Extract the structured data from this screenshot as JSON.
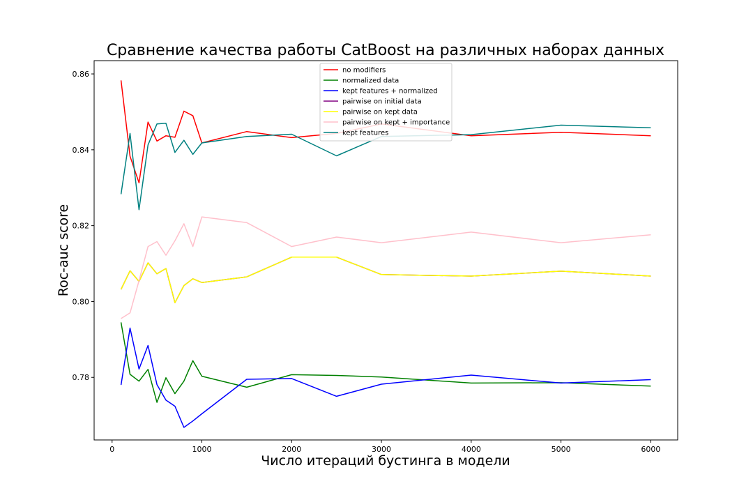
{
  "chart_data": {
    "type": "line",
    "title": "Сравнение качества работы CatBoost на различных наборах данных",
    "xlabel": "Число итераций бустинга в модели",
    "ylabel": "Roc-auc score",
    "xlim": [
      -200,
      6300
    ],
    "ylim": [
      0.7635,
      0.8635
    ],
    "xticks": [
      0,
      1000,
      2000,
      3000,
      4000,
      5000,
      6000
    ],
    "yticks": [
      0.78,
      0.8,
      0.82,
      0.84,
      0.86
    ],
    "xtick_labels": [
      "0",
      "1000",
      "2000",
      "3000",
      "4000",
      "5000",
      "6000"
    ],
    "ytick_labels": [
      "0.78",
      "0.80",
      "0.82",
      "0.84",
      "0.86"
    ],
    "grid": false,
    "legend_position": "top-center",
    "x": [
      100,
      200,
      300,
      400,
      500,
      600,
      700,
      800,
      900,
      1000,
      1500,
      2000,
      2500,
      3000,
      4000,
      5000,
      6000
    ],
    "series": [
      {
        "name": "no modifiers",
        "color": "#ff0000",
        "values": [
          0.8583,
          0.8383,
          0.8313,
          0.8473,
          0.8423,
          0.8437,
          0.8433,
          0.8502,
          0.849,
          0.8418,
          0.8448,
          0.8432,
          0.8443,
          0.8468,
          0.8437,
          0.8446,
          0.8437
        ]
      },
      {
        "name": "normalized data",
        "color": "#008000",
        "values": [
          0.7945,
          0.7808,
          0.779,
          0.7821,
          0.7734,
          0.7799,
          0.7757,
          0.779,
          0.7844,
          0.7803,
          0.7774,
          0.7807,
          0.7805,
          0.7801,
          0.7785,
          0.7786,
          0.7777
        ]
      },
      {
        "name": "kept features + normalized",
        "color": "#0000ff",
        "values": [
          0.778,
          0.793,
          0.7822,
          0.7884,
          0.7781,
          0.774,
          0.7724,
          0.7668,
          0.7685,
          0.7704,
          0.7795,
          0.7797,
          0.775,
          0.7782,
          0.7806,
          0.7785,
          0.7794
        ]
      },
      {
        "name": "pairwise on initial data",
        "color": "#800080",
        "values": [
          0.8032,
          0.8081,
          0.8053,
          0.8102,
          0.8073,
          0.8087,
          0.7997,
          0.8042,
          0.806,
          0.805,
          0.8065,
          0.8117,
          0.8117,
          0.8071,
          0.8067,
          0.808,
          0.8067
        ]
      },
      {
        "name": "pairwise on kept data",
        "color": "#ffff00",
        "values": [
          0.8032,
          0.8081,
          0.8053,
          0.8102,
          0.8073,
          0.8087,
          0.7997,
          0.8042,
          0.806,
          0.805,
          0.8065,
          0.8117,
          0.8117,
          0.8071,
          0.8067,
          0.808,
          0.8067
        ]
      },
      {
        "name": "pairwise on kept + importance",
        "color": "#ffc0cb",
        "values": [
          0.7955,
          0.797,
          0.8055,
          0.8145,
          0.8158,
          0.8122,
          0.816,
          0.8205,
          0.8145,
          0.8223,
          0.8208,
          0.8145,
          0.817,
          0.8155,
          0.8183,
          0.8155,
          0.8176
        ]
      },
      {
        "name": "kept features",
        "color": "#008080",
        "values": [
          0.8283,
          0.8443,
          0.8242,
          0.8413,
          0.8468,
          0.847,
          0.8393,
          0.8425,
          0.8388,
          0.8418,
          0.8435,
          0.8441,
          0.8384,
          0.8435,
          0.844,
          0.8465,
          0.8458
        ]
      }
    ]
  }
}
